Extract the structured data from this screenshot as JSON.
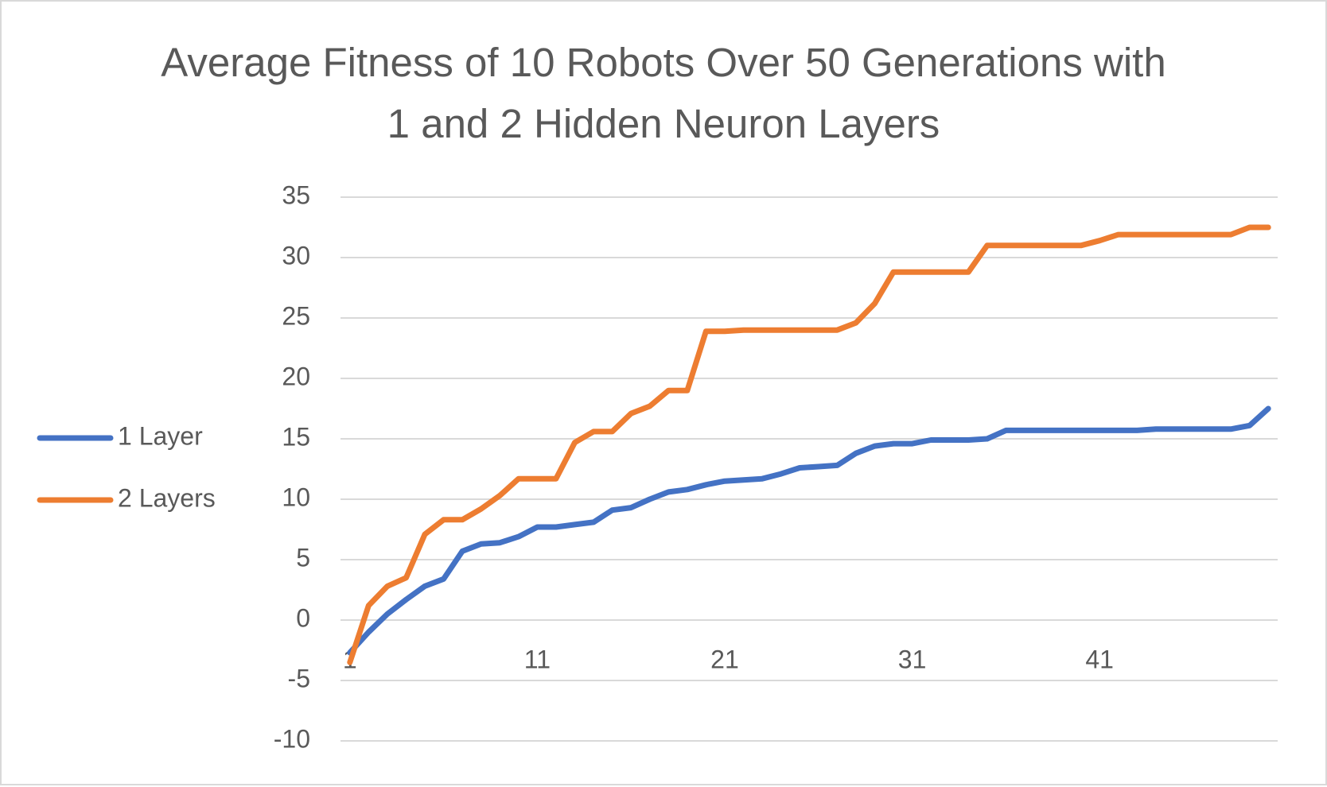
{
  "chart_data": {
    "type": "line",
    "title": "Average Fitness of 10 Robots Over 50 Generations with 1 and 2 Hidden Neuron Layers",
    "categories": [
      "1",
      null,
      null,
      null,
      null,
      null,
      null,
      null,
      null,
      null,
      "11",
      null,
      null,
      null,
      null,
      null,
      null,
      null,
      null,
      null,
      "21",
      null,
      null,
      null,
      null,
      null,
      null,
      null,
      null,
      null,
      "31",
      null,
      null,
      null,
      null,
      null,
      null,
      null,
      null,
      null,
      "41",
      null,
      null,
      null,
      null,
      null,
      null,
      null,
      null,
      null
    ],
    "series": [
      {
        "name": "1 Layer",
        "color": "#4472c4",
        "values": [
          -2.7,
          -1,
          0.5,
          1.7,
          2.8,
          3.4,
          5.7,
          6.3,
          6.4,
          6.9,
          7.7,
          7.7,
          7.9,
          8.1,
          9.1,
          9.3,
          10.0,
          10.6,
          10.8,
          11.2,
          11.5,
          11.6,
          11.7,
          12.1,
          12.6,
          12.7,
          12.8,
          13.8,
          14.4,
          14.6,
          14.6,
          14.9,
          14.9,
          14.9,
          15.0,
          15.7,
          15.7,
          15.7,
          15.7,
          15.7,
          15.7,
          15.7,
          15.7,
          15.8,
          15.8,
          15.8,
          15.8,
          15.8,
          16.1,
          17.5
        ]
      },
      {
        "name": "2 Layers",
        "color": "#ed7d31",
        "values": [
          -3.5,
          1.2,
          2.8,
          3.5,
          7.1,
          8.3,
          8.3,
          9.2,
          10.3,
          11.7,
          11.7,
          11.7,
          14.7,
          15.6,
          15.6,
          17.1,
          17.7,
          19.0,
          19.0,
          23.9,
          23.9,
          24.0,
          24.0,
          24.0,
          24.0,
          24.0,
          24.0,
          24.6,
          26.2,
          28.8,
          28.8,
          28.8,
          28.8,
          28.8,
          31.0,
          31.0,
          31.0,
          31.0,
          31.0,
          31.0,
          31.4,
          31.9,
          31.9,
          31.9,
          31.9,
          31.9,
          31.9,
          31.9,
          32.5,
          32.5
        ]
      }
    ],
    "ylim": [
      -10,
      35
    ],
    "yticks": [
      -10,
      -5,
      0,
      5,
      10,
      15,
      20,
      25,
      30,
      35
    ],
    "grid": true,
    "legend": "left"
  }
}
